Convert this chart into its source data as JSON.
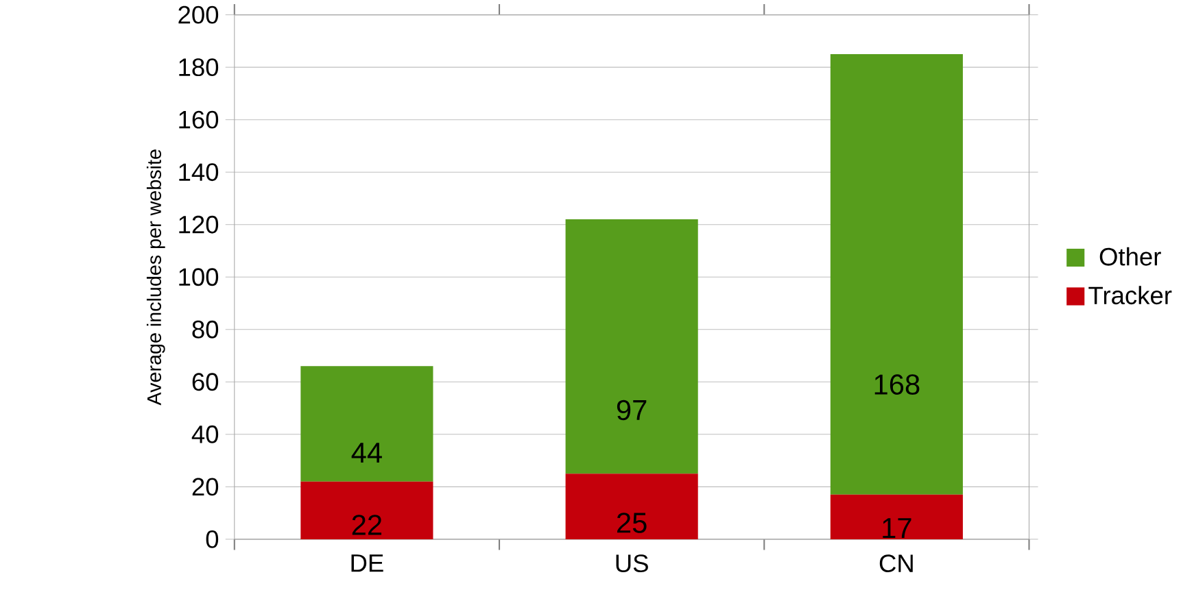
{
  "chart_data": {
    "type": "bar",
    "stacked": true,
    "ylabel": "Average includes per website",
    "categories": [
      "DE",
      "US",
      "CN"
    ],
    "series": [
      {
        "name": "Tracker",
        "color": "#c5000b",
        "values": [
          22,
          25,
          17
        ]
      },
      {
        "name": "Other",
        "color": "#579d1c",
        "values": [
          44,
          97,
          168
        ]
      }
    ],
    "ylim": [
      0,
      200
    ],
    "yticks": [
      0,
      20,
      40,
      60,
      80,
      100,
      120,
      140,
      160,
      180,
      200
    ],
    "grid": "y",
    "legend": "right",
    "data_labels": true
  }
}
